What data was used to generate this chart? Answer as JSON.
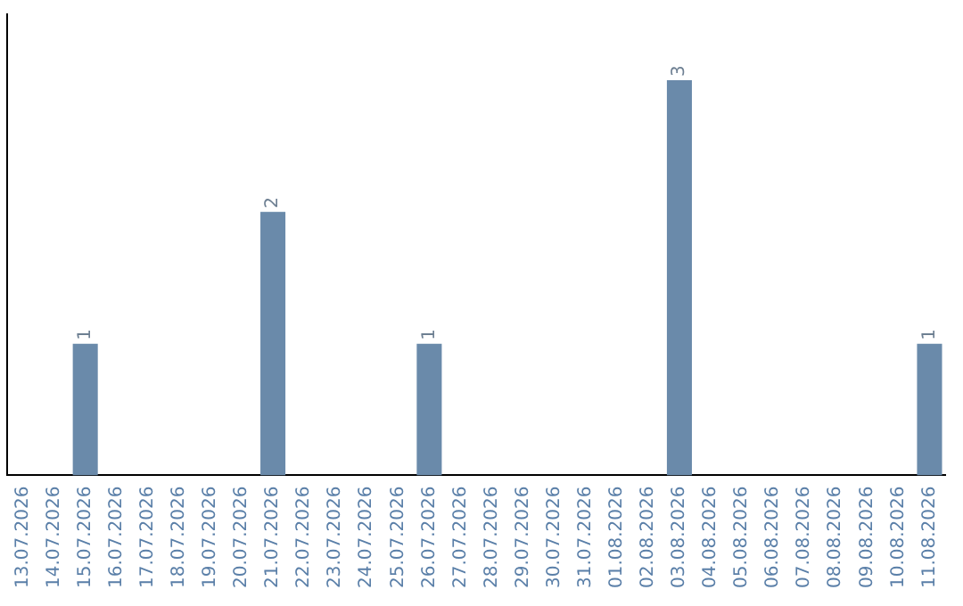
{
  "chart_data": {
    "type": "bar",
    "categories": [
      "13.07.2026",
      "14.07.2026",
      "15.07.2026",
      "16.07.2026",
      "17.07.2026",
      "18.07.2026",
      "19.07.2026",
      "20.07.2026",
      "21.07.2026",
      "22.07.2026",
      "23.07.2026",
      "24.07.2026",
      "25.07.2026",
      "26.07.2026",
      "27.07.2026",
      "28.07.2026",
      "29.07.2026",
      "30.07.2026",
      "31.07.2026",
      "01.08.2026",
      "02.08.2026",
      "03.08.2026",
      "04.08.2026",
      "05.08.2026",
      "06.08.2026",
      "07.08.2026",
      "08.08.2026",
      "09.08.2026",
      "10.08.2026",
      "11.08.2026"
    ],
    "values": [
      0,
      0,
      1,
      0,
      0,
      0,
      0,
      0,
      2,
      0,
      0,
      0,
      0,
      1,
      0,
      0,
      0,
      0,
      0,
      0,
      0,
      3,
      0,
      0,
      0,
      0,
      0,
      0,
      0,
      1
    ],
    "value_labels": [
      null,
      null,
      "1",
      null,
      null,
      null,
      null,
      null,
      "2",
      null,
      null,
      null,
      null,
      "1",
      null,
      null,
      null,
      null,
      null,
      null,
      null,
      "3",
      null,
      null,
      null,
      null,
      null,
      null,
      null,
      "1"
    ],
    "color": "#6a8aaa",
    "grid": false,
    "legend": false,
    "tick_labels": "x"
  }
}
